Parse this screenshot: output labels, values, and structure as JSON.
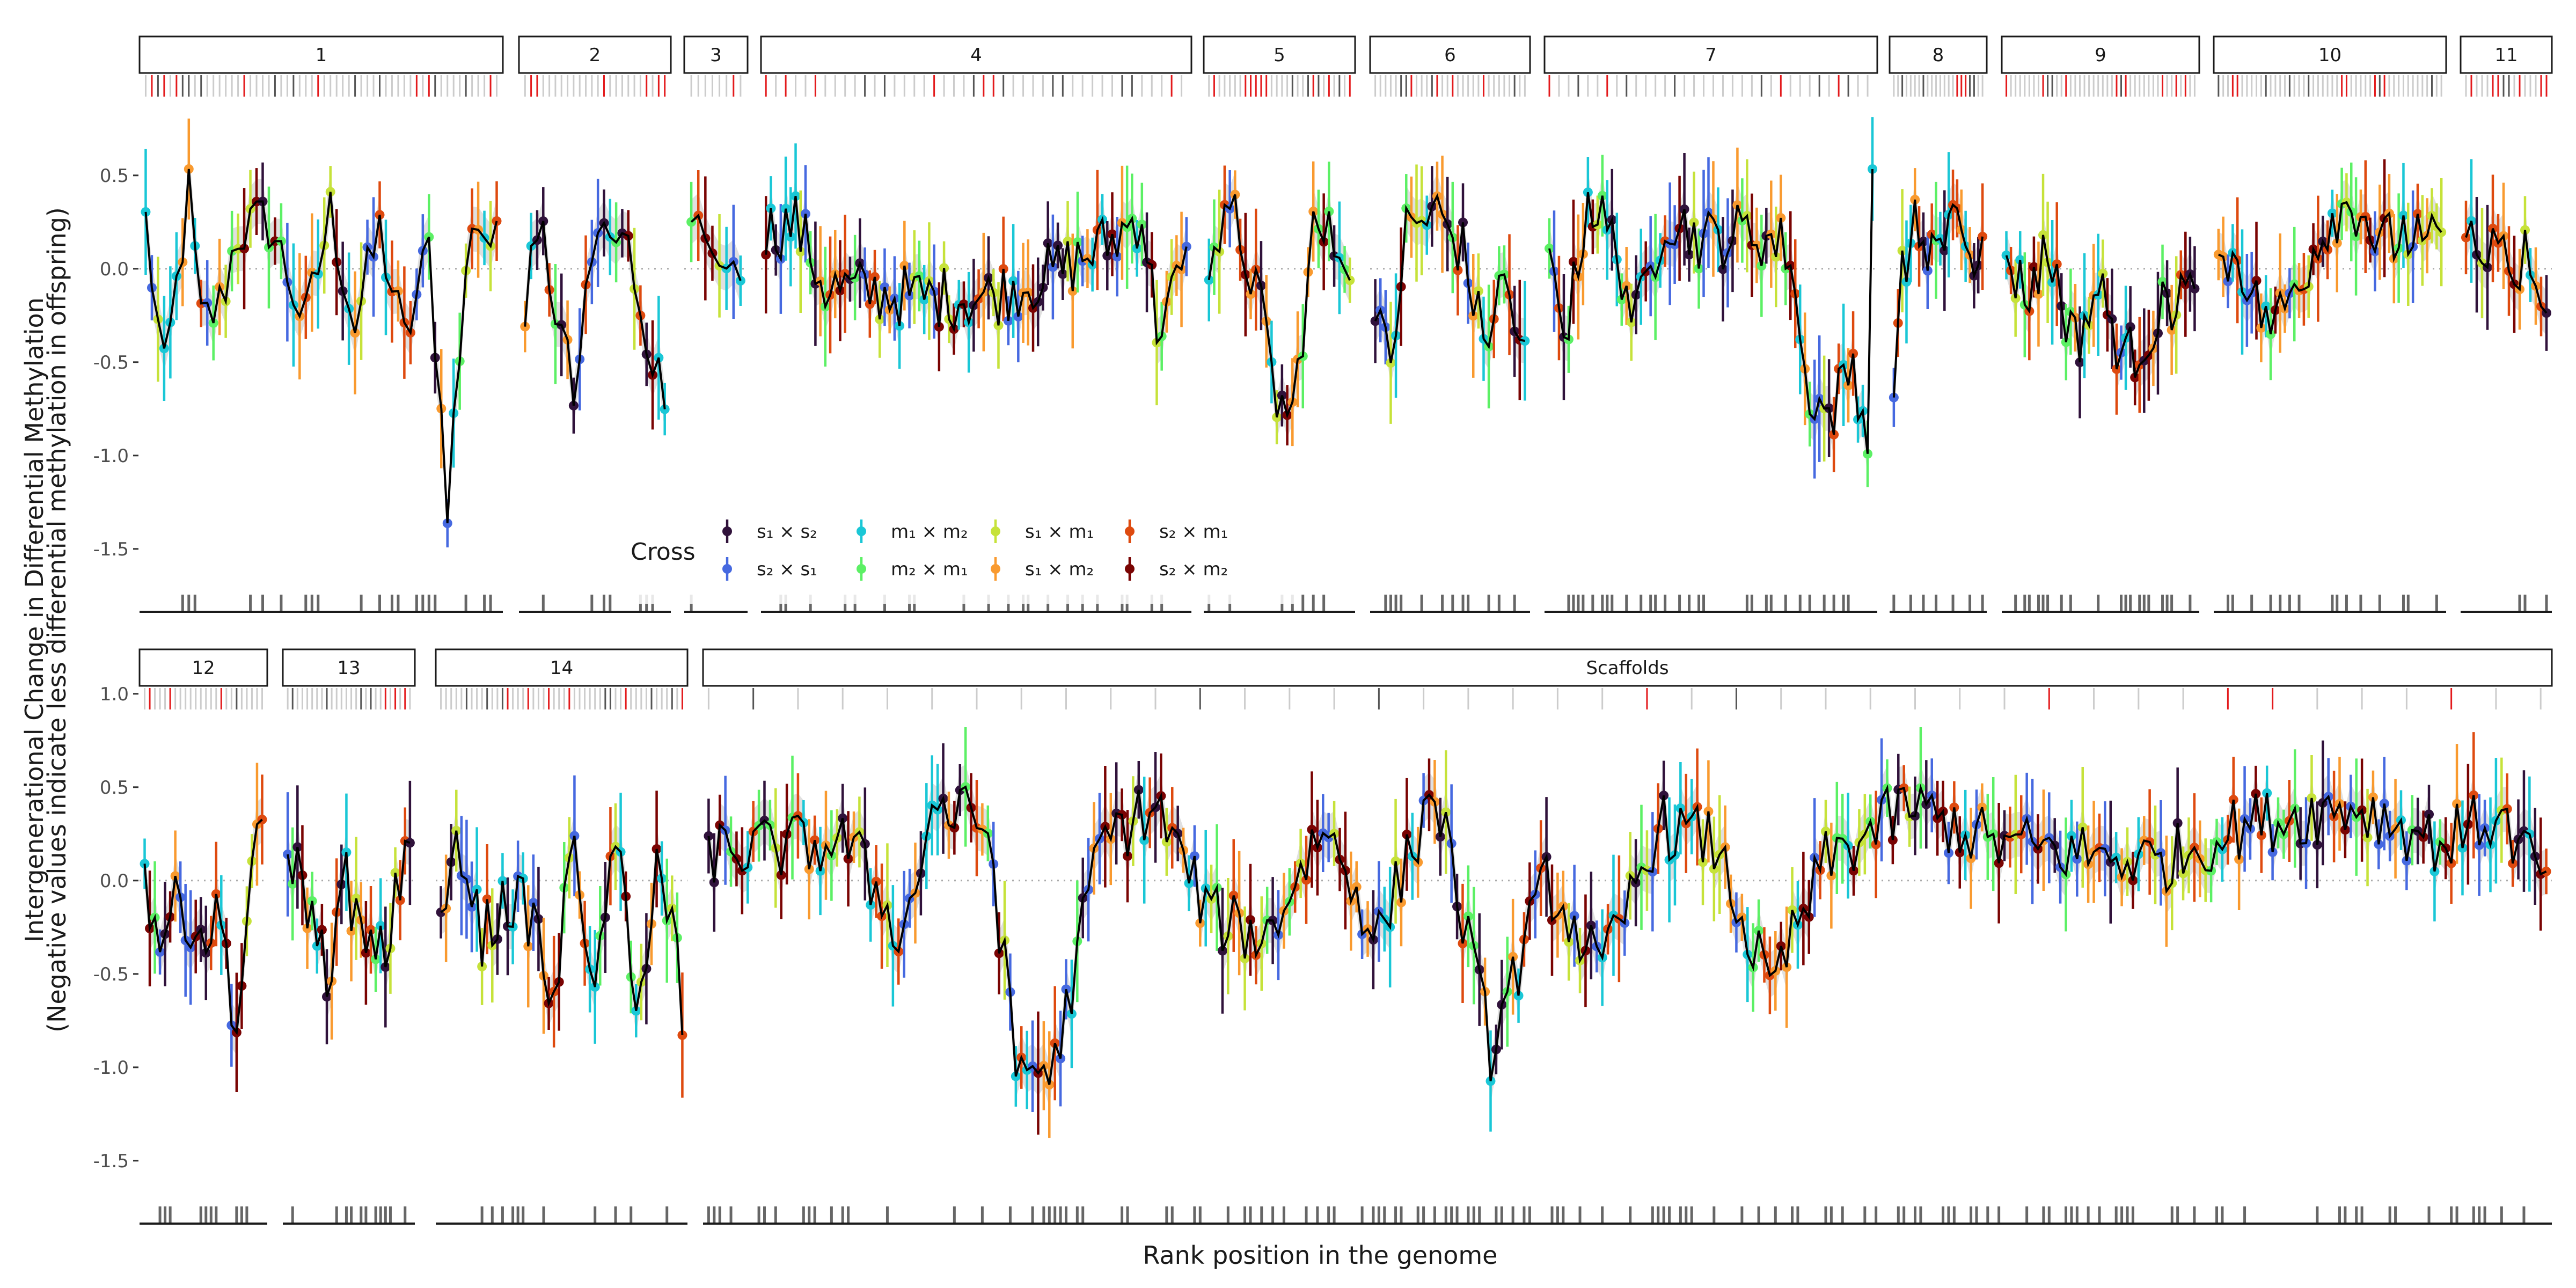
{
  "chart_data": {
    "type": "scatter",
    "xlabel": "Rank position in the genome",
    "ylabel": "Intergenerational Change in Differential Methylation",
    "ylabel_sub": "(Negative values indicate less differential methylation in offspring)",
    "ylim": [
      -1.65,
      0.85
    ],
    "yticks": [
      -1.5,
      -1.0,
      -0.5,
      0.0,
      0.5,
      1.0
    ],
    "ytick_labels": [
      "-1.5",
      "-1.0",
      "-0.5",
      "0.0",
      "0.5",
      "1.0"
    ],
    "reference_line": 0.0,
    "grid": false,
    "legend": {
      "title": "Cross",
      "placement": "inside-bottom-left",
      "entries": [
        {
          "key": "s1xs2",
          "label": "s₁ × s₂",
          "color": "#30123b"
        },
        {
          "key": "s2xs1",
          "label": "s₂ × s₁",
          "color": "#4669e0"
        },
        {
          "key": "m1xm2",
          "label": "m₁ × m₂",
          "color": "#1ac7d6"
        },
        {
          "key": "m2xm1",
          "label": "m₂ × m₁",
          "color": "#5cf065"
        },
        {
          "key": "s1xm1",
          "label": "s₁ × m₁",
          "color": "#c6e23a"
        },
        {
          "key": "s1xm2",
          "label": "s₁ × m₂",
          "color": "#f99a2f"
        },
        {
          "key": "s2xm1",
          "label": "s₂ × m₁",
          "color": "#de4a0f"
        },
        {
          "key": "s2xm2",
          "label": "s₂ × m₂",
          "color": "#7a0403"
        }
      ]
    },
    "facets": [
      {
        "label": "1",
        "row": 0,
        "points": 58,
        "profile": [
          [
            0,
            0.25
          ],
          [
            3,
            -0.6
          ],
          [
            7,
            0.4
          ],
          [
            9,
            -0.3
          ],
          [
            12,
            -0.2
          ],
          [
            15,
            0.2
          ],
          [
            20,
            0.25
          ],
          [
            26,
            -0.3
          ],
          [
            30,
            0.3
          ],
          [
            34,
            -0.3
          ],
          [
            38,
            0.2
          ],
          [
            42,
            -0.4
          ],
          [
            46,
            0.1
          ],
          [
            49,
            -1.22
          ],
          [
            53,
            0.3
          ],
          [
            57,
            0.1
          ]
        ]
      },
      {
        "label": "2",
        "row": 0,
        "points": 24,
        "profile": [
          [
            0,
            -0.15
          ],
          [
            3,
            0.15
          ],
          [
            8,
            -0.7
          ],
          [
            12,
            0.2
          ],
          [
            17,
            0.1
          ],
          [
            20,
            -0.3
          ],
          [
            23,
            -0.75
          ]
        ]
      },
      {
        "label": "3",
        "row": 0,
        "points": 8,
        "profile": [
          [
            0,
            0.3
          ],
          [
            3,
            0.1
          ],
          [
            5,
            -0.05
          ],
          [
            7,
            0.1
          ]
        ]
      },
      {
        "label": "4",
        "row": 0,
        "points": 86,
        "profile": [
          [
            0,
            0.2
          ],
          [
            6,
            0.25
          ],
          [
            12,
            -0.1
          ],
          [
            30,
            -0.15
          ],
          [
            45,
            -0.15
          ],
          [
            60,
            0.0
          ],
          [
            70,
            0.15
          ],
          [
            76,
            0.3
          ],
          [
            79,
            -0.3
          ],
          [
            85,
            0.0
          ]
        ]
      },
      {
        "label": "5",
        "row": 0,
        "points": 28,
        "profile": [
          [
            0,
            0.1
          ],
          [
            5,
            0.25
          ],
          [
            9,
            -0.1
          ],
          [
            13,
            -0.7
          ],
          [
            16,
            -0.8
          ],
          [
            20,
            0.2
          ],
          [
            27,
            0.1
          ]
        ]
      },
      {
        "label": "6",
        "row": 0,
        "points": 30,
        "profile": [
          [
            0,
            -0.3
          ],
          [
            3,
            -0.5
          ],
          [
            6,
            0.2
          ],
          [
            12,
            0.3
          ],
          [
            17,
            0.1
          ],
          [
            21,
            -0.4
          ],
          [
            25,
            -0.05
          ],
          [
            29,
            -0.5
          ]
        ]
      },
      {
        "label": "7",
        "row": 0,
        "points": 68,
        "profile": [
          [
            0,
            0.0
          ],
          [
            4,
            -0.3
          ],
          [
            8,
            0.4
          ],
          [
            14,
            0.1
          ],
          [
            18,
            -0.3
          ],
          [
            24,
            0.3
          ],
          [
            32,
            0.15
          ],
          [
            42,
            0.2
          ],
          [
            50,
            0.1
          ],
          [
            53,
            -0.6
          ],
          [
            58,
            -0.8
          ],
          [
            63,
            -0.5
          ],
          [
            66,
            -0.9
          ],
          [
            67,
            0.4
          ]
        ]
      },
      {
        "label": "8",
        "row": 0,
        "points": 22,
        "profile": [
          [
            0,
            -0.8
          ],
          [
            2,
            0.0
          ],
          [
            5,
            0.2
          ],
          [
            10,
            0.1
          ],
          [
            14,
            0.2
          ],
          [
            19,
            -0.05
          ],
          [
            21,
            0.15
          ]
        ]
      },
      {
        "label": "9",
        "row": 0,
        "points": 42,
        "profile": [
          [
            0,
            0.1
          ],
          [
            4,
            -0.15
          ],
          [
            9,
            0.1
          ],
          [
            15,
            -0.4
          ],
          [
            20,
            -0.1
          ],
          [
            26,
            -0.5
          ],
          [
            32,
            -0.3
          ],
          [
            38,
            -0.1
          ],
          [
            41,
            -0.2
          ]
        ]
      },
      {
        "label": "10",
        "row": 0,
        "points": 48,
        "profile": [
          [
            0,
            0.0
          ],
          [
            4,
            0.1
          ],
          [
            8,
            -0.2
          ],
          [
            12,
            -0.3
          ],
          [
            18,
            0.0
          ],
          [
            24,
            0.3
          ],
          [
            30,
            0.35
          ],
          [
            34,
            0.1
          ],
          [
            39,
            0.2
          ],
          [
            44,
            0.1
          ],
          [
            47,
            0.15
          ]
        ]
      },
      {
        "label": "11",
        "row": 0,
        "points": 16,
        "profile": [
          [
            0,
            0.2
          ],
          [
            3,
            0.1
          ],
          [
            6,
            0.25
          ],
          [
            9,
            0.0
          ],
          [
            12,
            0.1
          ],
          [
            15,
            -0.15
          ]
        ]
      },
      {
        "label": "12",
        "row": 1,
        "points": 24,
        "profile": [
          [
            0,
            0.0
          ],
          [
            3,
            -0.3
          ],
          [
            7,
            -0.1
          ],
          [
            11,
            -0.3
          ],
          [
            15,
            -0.2
          ],
          [
            18,
            -0.8
          ],
          [
            21,
            0.0
          ],
          [
            23,
            0.3
          ]
        ]
      },
      {
        "label": "13",
        "row": 1,
        "points": 26,
        "profile": [
          [
            0,
            0.2
          ],
          [
            4,
            -0.1
          ],
          [
            8,
            -0.5
          ],
          [
            12,
            0.0
          ],
          [
            16,
            -0.4
          ],
          [
            20,
            -0.4
          ],
          [
            25,
            0.3
          ]
        ]
      },
      {
        "label": "14",
        "row": 1,
        "points": 48,
        "profile": [
          [
            0,
            -0.2
          ],
          [
            4,
            0.2
          ],
          [
            8,
            -0.3
          ],
          [
            13,
            -0.1
          ],
          [
            18,
            -0.2
          ],
          [
            22,
            -0.7
          ],
          [
            26,
            0.3
          ],
          [
            30,
            -0.7
          ],
          [
            34,
            0.3
          ],
          [
            38,
            -0.8
          ],
          [
            42,
            0.15
          ],
          [
            46,
            -0.4
          ],
          [
            47,
            -0.9
          ]
        ]
      },
      {
        "label": "Scaffolds",
        "row": 1,
        "points": 330,
        "profile": [
          [
            0,
            0.15
          ],
          [
            25,
            0.2
          ],
          [
            35,
            -0.3
          ],
          [
            40,
            0.4
          ],
          [
            50,
            0.3
          ],
          [
            55,
            -1.0
          ],
          [
            62,
            -1.0
          ],
          [
            70,
            0.2
          ],
          [
            80,
            0.4
          ],
          [
            90,
            -0.2
          ],
          [
            100,
            -0.3
          ],
          [
            110,
            0.3
          ],
          [
            120,
            -0.3
          ],
          [
            130,
            0.5
          ],
          [
            140,
            -0.9
          ],
          [
            150,
            0.0
          ],
          [
            160,
            -0.5
          ],
          [
            170,
            0.3
          ],
          [
            180,
            0.2
          ],
          [
            190,
            -0.6
          ],
          [
            200,
            0.1
          ],
          [
            215,
            0.4
          ],
          [
            230,
            0.2
          ],
          [
            245,
            0.15
          ],
          [
            260,
            0.1
          ],
          [
            275,
            0.3
          ],
          [
            285,
            0.35
          ],
          [
            295,
            0.4
          ],
          [
            310,
            0.2
          ],
          [
            320,
            0.35
          ],
          [
            329,
            0.0
          ]
        ]
      }
    ]
  }
}
